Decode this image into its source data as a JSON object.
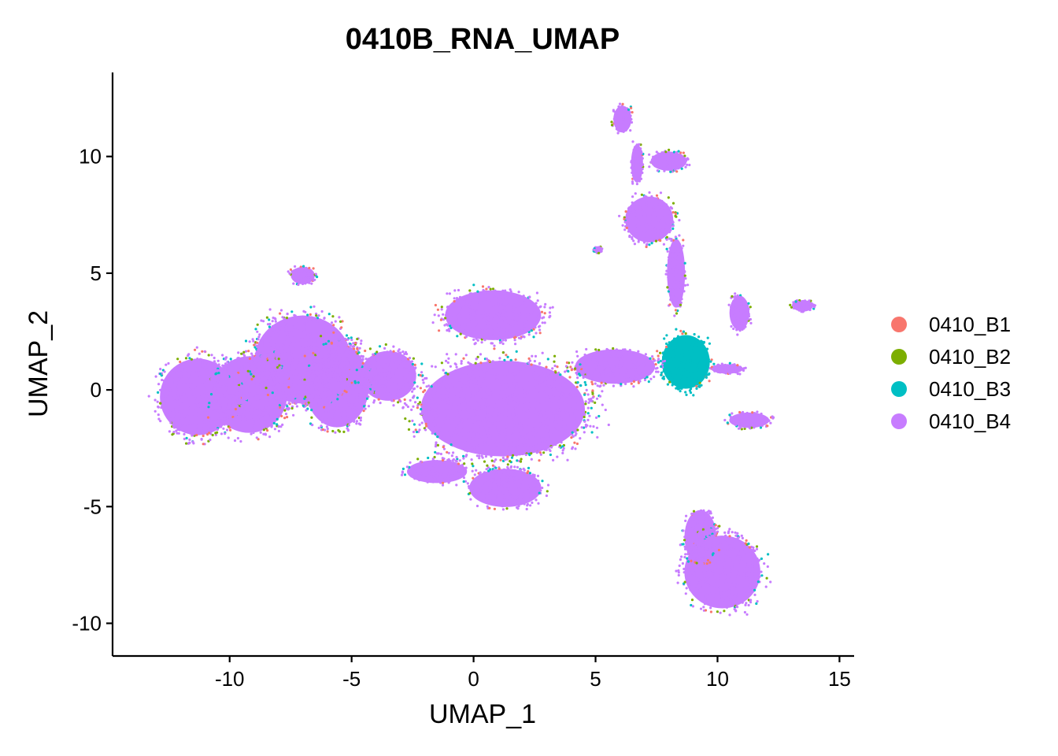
{
  "chart_data": {
    "type": "scatter",
    "title": "0410B_RNA_UMAP",
    "xlabel": "UMAP_1",
    "ylabel": "UMAP_2",
    "xlim": [
      -14.8,
      15.6
    ],
    "ylim": [
      -11.4,
      13.6
    ],
    "xticks": [
      -10,
      -5,
      0,
      5,
      10,
      15
    ],
    "yticks": [
      -10,
      -5,
      0,
      5,
      10
    ],
    "xtick_labels": [
      "-10",
      "-5",
      "0",
      "5",
      "10",
      "15"
    ],
    "ytick_labels": [
      "-10",
      "-5",
      "0",
      "5",
      "10"
    ],
    "grid": false,
    "legend_position": "right",
    "series": [
      {
        "name": "0410_B1",
        "color": "#F8766D"
      },
      {
        "name": "0410_B2",
        "color": "#7CAE00"
      },
      {
        "name": "0410_B3",
        "color": "#00BFC4"
      },
      {
        "name": "0410_B4",
        "color": "#C77CFF"
      }
    ],
    "clusters": [
      {
        "cx": -11.3,
        "cy": -0.3,
        "rx": 1.9,
        "ry": 2.0,
        "series": "0410_B4"
      },
      {
        "cx": -9.2,
        "cy": -0.2,
        "rx": 1.9,
        "ry": 2.0,
        "series": "0410_B4"
      },
      {
        "cx": -7.0,
        "cy": 1.3,
        "rx": 2.4,
        "ry": 2.3,
        "series": "0410_B4"
      },
      {
        "cx": -5.6,
        "cy": 0.2,
        "rx": 1.6,
        "ry": 2.2,
        "series": "0410_B4"
      },
      {
        "cx": -3.5,
        "cy": 0.6,
        "rx": 1.4,
        "ry": 1.3,
        "series": "0410_B4"
      },
      {
        "cx": 0.8,
        "cy": 3.2,
        "rx": 2.4,
        "ry": 1.3,
        "series": "0410_B4"
      },
      {
        "cx": 1.2,
        "cy": -0.8,
        "rx": 4.1,
        "ry": 2.5,
        "series": "0410_B4"
      },
      {
        "cx": 1.3,
        "cy": -4.2,
        "rx": 1.8,
        "ry": 1.0,
        "series": "0410_B4"
      },
      {
        "cx": -1.5,
        "cy": -3.5,
        "rx": 1.5,
        "ry": 0.6,
        "series": "0410_B4"
      },
      {
        "cx": 5.8,
        "cy": 1.0,
        "rx": 2.0,
        "ry": 0.9,
        "series": "0410_B4"
      },
      {
        "cx": 8.7,
        "cy": 1.2,
        "rx": 1.2,
        "ry": 1.4,
        "series": "0410_B3"
      },
      {
        "cx": 7.2,
        "cy": 7.3,
        "rx": 1.2,
        "ry": 1.2,
        "series": "0410_B4"
      },
      {
        "cx": 8.3,
        "cy": 5.0,
        "rx": 0.45,
        "ry": 1.8,
        "series": "0410_B4"
      },
      {
        "cx": 6.1,
        "cy": 11.6,
        "rx": 0.45,
        "ry": 0.7,
        "series": "0410_B4"
      },
      {
        "cx": 8.0,
        "cy": 9.8,
        "rx": 0.9,
        "ry": 0.5,
        "series": "0410_B4"
      },
      {
        "cx": 6.7,
        "cy": 9.7,
        "rx": 0.3,
        "ry": 1.0,
        "series": "0410_B4"
      },
      {
        "cx": 10.9,
        "cy": 3.3,
        "rx": 0.5,
        "ry": 0.9,
        "series": "0410_B4"
      },
      {
        "cx": 10.4,
        "cy": 0.9,
        "rx": 0.8,
        "ry": 0.25,
        "series": "0410_B4"
      },
      {
        "cx": 11.3,
        "cy": -1.3,
        "rx": 1.0,
        "ry": 0.4,
        "series": "0410_B4"
      },
      {
        "cx": 13.5,
        "cy": 3.6,
        "rx": 0.5,
        "ry": 0.3,
        "series": "0410_B4"
      },
      {
        "cx": -7.0,
        "cy": 4.9,
        "rx": 0.6,
        "ry": 0.45,
        "series": "0410_B4"
      },
      {
        "cx": 5.1,
        "cy": 6.0,
        "rx": 0.2,
        "ry": 0.15,
        "series": "0410_B4"
      },
      {
        "cx": 10.2,
        "cy": -7.8,
        "rx": 1.9,
        "ry": 1.9,
        "series": "0410_B4"
      },
      {
        "cx": 9.3,
        "cy": -6.3,
        "rx": 0.8,
        "ry": 1.4,
        "series": "0410_B4"
      }
    ]
  }
}
